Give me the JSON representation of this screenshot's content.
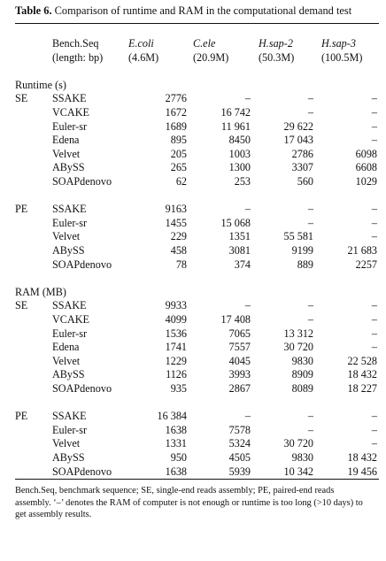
{
  "caption": {
    "label": "Table 6.",
    "text": "Comparison of runtime and RAM in the computational demand test"
  },
  "header": {
    "row1": [
      "Bench.Seq",
      "E.coli",
      "C.ele",
      "H.sap-2",
      "H.sap-3"
    ],
    "row2": [
      "(length: bp)",
      "(4.6M)",
      "(20.9M)",
      "(50.3M)",
      "(100.5M)"
    ]
  },
  "sections": [
    {
      "title": "Runtime (s)",
      "groups": [
        {
          "label": "SE",
          "rows": [
            {
              "name": "SSAKE",
              "values": [
                "2776",
                "–",
                "–",
                "–"
              ]
            },
            {
              "name": "VCAKE",
              "values": [
                "1672",
                "16 742",
                "–",
                "–"
              ]
            },
            {
              "name": "Euler-sr",
              "values": [
                "1689",
                "11 961",
                "29 622",
                "–"
              ]
            },
            {
              "name": "Edena",
              "values": [
                "895",
                "8450",
                "17 043",
                "–"
              ]
            },
            {
              "name": "Velvet",
              "values": [
                "205",
                "1003",
                "2786",
                "6098"
              ]
            },
            {
              "name": "ABySS",
              "values": [
                "265",
                "1300",
                "3307",
                "6608"
              ]
            },
            {
              "name": "SOAPdenovo",
              "values": [
                "62",
                "253",
                "560",
                "1029"
              ]
            }
          ]
        },
        {
          "label": "PE",
          "rows": [
            {
              "name": "SSAKE",
              "values": [
                "9163",
                "–",
                "–",
                "–"
              ]
            },
            {
              "name": "Euler-sr",
              "values": [
                "1455",
                "15 068",
                "–",
                "–"
              ]
            },
            {
              "name": "Velvet",
              "values": [
                "229",
                "1351",
                "55 581",
                "–"
              ]
            },
            {
              "name": "ABySS",
              "values": [
                "458",
                "3081",
                "9199",
                "21 683"
              ]
            },
            {
              "name": "SOAPdenovo",
              "values": [
                "78",
                "374",
                "889",
                "2257"
              ]
            }
          ]
        }
      ]
    },
    {
      "title": "RAM (MB)",
      "groups": [
        {
          "label": "SE",
          "rows": [
            {
              "name": "SSAKE",
              "values": [
                "9933",
                "–",
                "–",
                "–"
              ]
            },
            {
              "name": "VCAKE",
              "values": [
                "4099",
                "17 408",
                "–",
                "–"
              ]
            },
            {
              "name": "Euler-sr",
              "values": [
                "1536",
                "7065",
                "13 312",
                "–"
              ]
            },
            {
              "name": "Edena",
              "values": [
                "1741",
                "7557",
                "30 720",
                "–"
              ]
            },
            {
              "name": "Velvet",
              "values": [
                "1229",
                "4045",
                "9830",
                "22 528"
              ]
            },
            {
              "name": "ABySS",
              "values": [
                "1126",
                "3993",
                "8909",
                "18 432"
              ]
            },
            {
              "name": "SOAPdenovo",
              "values": [
                "935",
                "2867",
                "8089",
                "18 227"
              ]
            }
          ]
        },
        {
          "label": "PE",
          "rows": [
            {
              "name": "SSAKE",
              "values": [
                "16 384",
                "–",
                "–",
                "–"
              ]
            },
            {
              "name": "Euler-sr",
              "values": [
                "1638",
                "7578",
                "–",
                "–"
              ]
            },
            {
              "name": "Velvet",
              "values": [
                "1331",
                "5324",
                "30 720",
                "–"
              ]
            },
            {
              "name": "ABySS",
              "values": [
                "950",
                "4505",
                "9830",
                "18 432"
              ]
            },
            {
              "name": "SOAPdenovo",
              "values": [
                "1638",
                "5939",
                "10 342",
                "19 456"
              ]
            }
          ]
        }
      ]
    }
  ],
  "footnote": "Bench.Seq, benchmark sequence; SE, single-end reads assembly; PE, paired-end reads assembly. ‘–’ denotes the RAM of computer is not enough or runtime is too long (>10 days) to get assembly results."
}
